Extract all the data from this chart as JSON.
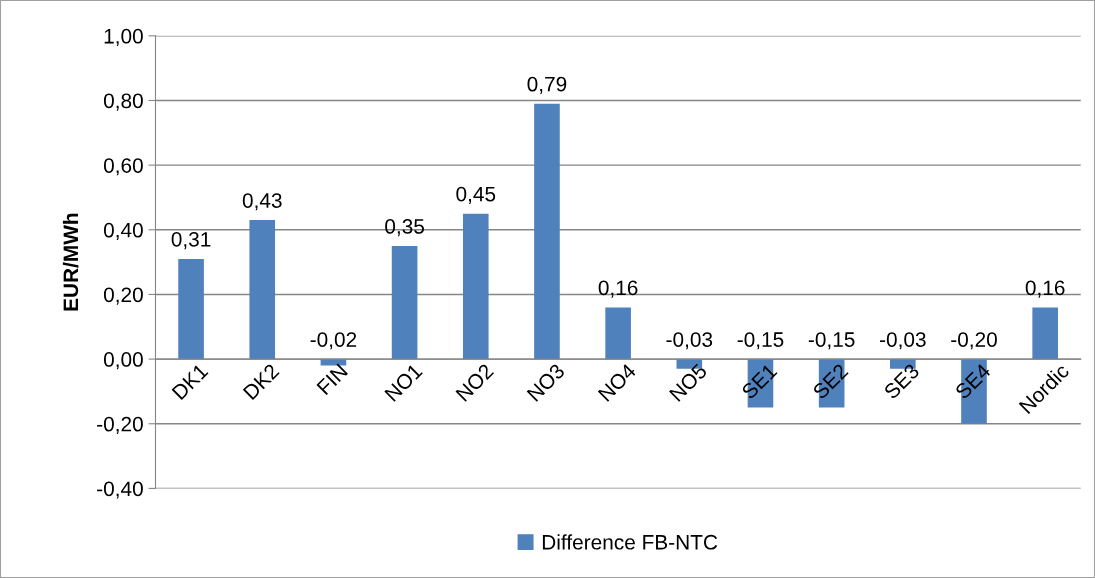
{
  "chart_data": {
    "type": "bar",
    "ylabel": "EUR/MWh",
    "categories": [
      "DK1",
      "DK2",
      "FIN",
      "NO1",
      "NO2",
      "NO3",
      "NO4",
      "NO5",
      "SE1",
      "SE2",
      "SE3",
      "SE4",
      "Nordic"
    ],
    "series": [
      {
        "name": "Difference FB-NTC",
        "color": "#4f81bd",
        "values": [
          0.31,
          0.43,
          -0.02,
          0.35,
          0.45,
          0.79,
          0.16,
          -0.03,
          -0.15,
          -0.15,
          -0.03,
          -0.2,
          0.16
        ],
        "value_labels": [
          "0,31",
          "0,43",
          "-0,02",
          "0,35",
          "0,45",
          "0,79",
          "0,16",
          "-0,03",
          "-0,15",
          "-0,15",
          "-0,03",
          "-0,20",
          "0,16"
        ]
      }
    ],
    "ylim": [
      -0.4,
      1.0
    ],
    "yticks": [
      {
        "value": -0.4,
        "label": "-0,40"
      },
      {
        "value": -0.2,
        "label": "-0,20"
      },
      {
        "value": 0,
        "label": "0,00"
      },
      {
        "value": 0.2,
        "label": "0,20"
      },
      {
        "value": 0.4,
        "label": "0,40"
      },
      {
        "value": 0.6,
        "label": "0,60"
      },
      {
        "value": 0.8,
        "label": "0,80"
      },
      {
        "value": 1.0,
        "label": "1,00"
      }
    ],
    "grid": "y",
    "legend": "bottom"
  }
}
